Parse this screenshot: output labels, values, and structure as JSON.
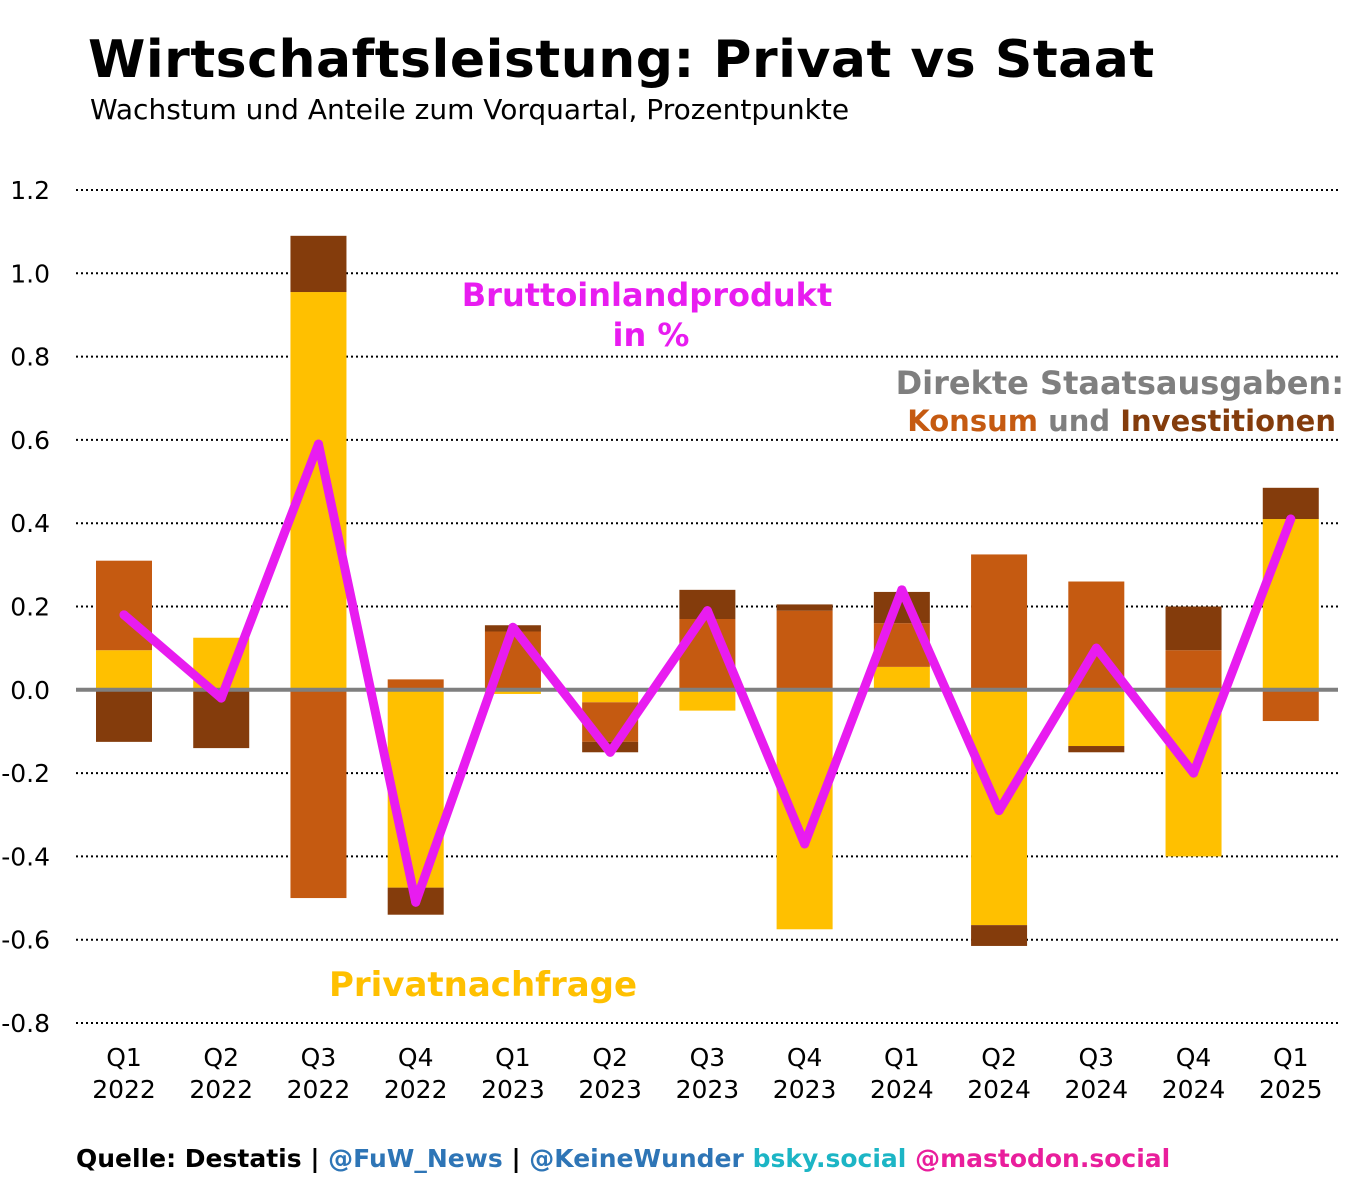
{
  "chart_data": {
    "type": "bar",
    "title": "Wirtschaftsleistung: Privat vs Staat",
    "subtitle": "Wachstum und Anteile zum Vorquartal, Prozentpunkte",
    "ylim": [
      -0.8,
      1.2
    ],
    "yticks": [
      "1.2",
      "1.0",
      "0.8",
      "0.6",
      "0.4",
      "0.2",
      "0.0",
      "-0.2",
      "-0.4",
      "-0.6",
      "-0.8"
    ],
    "ytick_values": [
      1.2,
      1.0,
      0.8,
      0.6,
      0.4,
      0.2,
      0.0,
      -0.2,
      -0.4,
      -0.6,
      -0.8
    ],
    "grid": true,
    "stacked": true,
    "categories": [
      {
        "q": "Q1",
        "y": "2022"
      },
      {
        "q": "Q2",
        "y": "2022"
      },
      {
        "q": "Q3",
        "y": "2022"
      },
      {
        "q": "Q4",
        "y": "2022"
      },
      {
        "q": "Q1",
        "y": "2023"
      },
      {
        "q": "Q2",
        "y": "2023"
      },
      {
        "q": "Q3",
        "y": "2023"
      },
      {
        "q": "Q4",
        "y": "2023"
      },
      {
        "q": "Q1",
        "y": "2024"
      },
      {
        "q": "Q2",
        "y": "2024"
      },
      {
        "q": "Q3",
        "y": "2024"
      },
      {
        "q": "Q4",
        "y": "2024"
      },
      {
        "q": "Q1",
        "y": "2025"
      }
    ],
    "series": [
      {
        "name": "Privatnachfrage",
        "color": "#FFC000",
        "values": [
          0.095,
          0.125,
          0.955,
          -0.475,
          -0.01,
          -0.03,
          -0.05,
          -0.575,
          0.055,
          -0.565,
          -0.135,
          -0.4,
          0.41
        ]
      },
      {
        "name": "Konsum",
        "color": "#C55A11",
        "values": [
          0.215,
          0,
          -0.5,
          0.025,
          0.14,
          -0.095,
          0.17,
          0.19,
          0.105,
          0.325,
          0.26,
          0.095,
          -0.075
        ]
      },
      {
        "name": "Investitionen",
        "color": "#843C0C",
        "values": [
          -0.125,
          -0.14,
          0.135,
          -0.065,
          0.015,
          -0.025,
          0.07,
          0.015,
          0.075,
          -0.05,
          -0.015,
          0.105,
          0.075
        ]
      }
    ],
    "line": {
      "name": "Bruttoinlandprodukt in %",
      "color": "#E81CF0",
      "values": [
        0.18,
        -0.02,
        0.59,
        -0.51,
        0.15,
        -0.15,
        0.19,
        -0.37,
        0.24,
        -0.29,
        0.1,
        -0.2,
        0.41
      ]
    },
    "annotations": {
      "bip_line1": "Bruttoinlandprodukt",
      "bip_line2": "in %",
      "staat_line1": "Direkte Staatsausgaben:",
      "staat_konsum": "Konsum",
      "staat_und": "und",
      "staat_invest": "Investitionen",
      "privat": "Privatnachfrage"
    },
    "colors": {
      "privat": "#FFC000",
      "konsum": "#C55A11",
      "investitionen": "#843C0C",
      "bip": "#E81CF0",
      "staat_label": "#7F7F7F",
      "zero_line": "#7F7F7F",
      "grid": "#000000"
    }
  },
  "footer": {
    "source": "Quelle: Destatis",
    "sep1": " | ",
    "handle1": "@FuW_News",
    "sep2": " | ",
    "handle2": "@KeineWunder",
    "bsky": " bsky.social",
    "mastodon": " @mastodon.social",
    "colors": {
      "source": "#000000",
      "handle1": "#2E75B6",
      "handle2": "#2E75B6",
      "bsky": "#1CB5C5",
      "mastodon": "#E91E9C"
    }
  }
}
